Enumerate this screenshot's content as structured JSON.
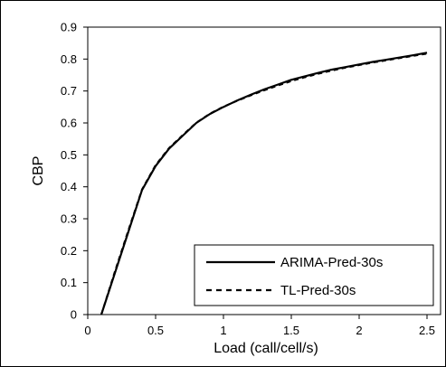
{
  "chart_data": {
    "type": "line",
    "title": "",
    "xlabel": "Load (call/cell/s)",
    "ylabel": "CBP",
    "xlim": [
      0,
      2.6
    ],
    "ylim": [
      0,
      0.9
    ],
    "xticks": [
      "0",
      "0.5",
      "1",
      "1.5",
      "2",
      "2.5"
    ],
    "xtick_values": [
      0,
      0.5,
      1,
      1.5,
      2,
      2.5
    ],
    "yticks": [
      "0",
      "0.1",
      "0.2",
      "0.3",
      "0.4",
      "0.5",
      "0.6",
      "0.7",
      "0.8",
      "0.9"
    ],
    "ytick_values": [
      0,
      0.1,
      0.2,
      0.3,
      0.4,
      0.5,
      0.6,
      0.7,
      0.8,
      0.9
    ],
    "grid": false,
    "legend_position": "bottom-right",
    "series": [
      {
        "name": "ARIMA-Pred-30s",
        "style": "solid",
        "color": "#000000",
        "x": [
          0.1,
          0.2,
          0.3,
          0.4,
          0.5,
          0.6,
          0.7,
          0.8,
          0.9,
          1.0,
          1.1,
          1.2,
          1.3,
          1.4,
          1.5,
          1.6,
          1.7,
          1.8,
          1.9,
          2.0,
          2.1,
          2.2,
          2.3,
          2.4,
          2.5
        ],
        "y": [
          0.0,
          0.13,
          0.26,
          0.39,
          0.465,
          0.52,
          0.56,
          0.6,
          0.628,
          0.65,
          0.67,
          0.688,
          0.705,
          0.72,
          0.735,
          0.746,
          0.757,
          0.767,
          0.775,
          0.783,
          0.791,
          0.798,
          0.805,
          0.812,
          0.82
        ]
      },
      {
        "name": "TL-Pred-30s",
        "style": "dashed",
        "color": "#000000",
        "x": [
          0.1,
          0.2,
          0.3,
          0.4,
          0.5,
          0.6,
          0.7,
          0.8,
          0.9,
          1.0,
          1.1,
          1.2,
          1.3,
          1.4,
          1.5,
          1.6,
          1.7,
          1.8,
          1.9,
          2.0,
          2.1,
          2.2,
          2.3,
          2.4,
          2.5
        ],
        "y": [
          0.0,
          0.135,
          0.265,
          0.392,
          0.468,
          0.522,
          0.562,
          0.601,
          0.629,
          0.651,
          0.669,
          0.686,
          0.702,
          0.717,
          0.731,
          0.743,
          0.754,
          0.764,
          0.773,
          0.781,
          0.789,
          0.796,
          0.803,
          0.81,
          0.817
        ]
      }
    ]
  }
}
